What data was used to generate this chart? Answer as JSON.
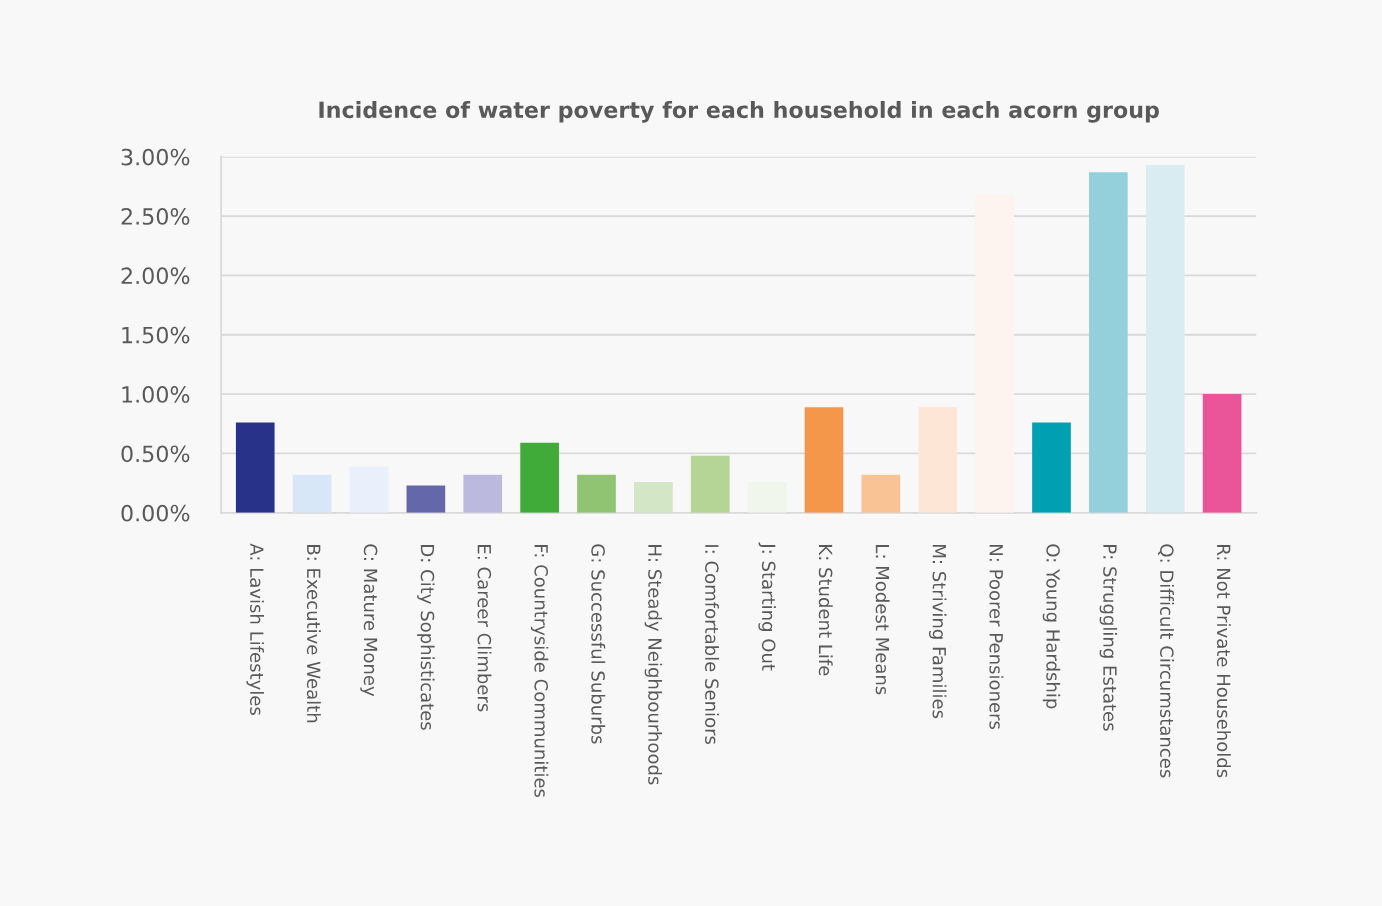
{
  "chart_data": {
    "type": "bar",
    "title": "Incidence of water poverty for each household in each acorn group",
    "categories": [
      "A: Lavish Lifestyles",
      "B: Executive Wealth",
      "C: Mature Money",
      "D: City Sophisticates",
      "E: Career Climbers",
      "F: Countryside Communities",
      "G: Successful Suburbs",
      "H: Steady Neighbourhoods",
      "I: Comfortable Seniors",
      "J: Starting Out",
      "K: Student Life",
      "L: Modest Means",
      "M: Striving Families",
      "N: Poorer Pensioners",
      "O: Young Hardship",
      "P: Struggling Estates",
      "Q: Difficult Circumstances",
      "R: Not Private Households"
    ],
    "values": [
      0.76,
      0.32,
      0.39,
      0.23,
      0.32,
      0.59,
      0.32,
      0.26,
      0.48,
      0.26,
      0.89,
      0.32,
      0.89,
      2.68,
      0.76,
      2.87,
      2.93,
      1.0
    ],
    "colors": [
      "#283289",
      "#d8e7f7",
      "#eaf0fb",
      "#6567ab",
      "#bbbade",
      "#41ab39",
      "#90c472",
      "#d3e7c7",
      "#b4d595",
      "#f0f6ec",
      "#f5974b",
      "#f9c396",
      "#fde6d6",
      "#fdf3ef",
      "#00a0b3",
      "#94d0dc",
      "#d8ecf1",
      "#e95598"
    ],
    "ylim": [
      0,
      3.0
    ],
    "yticks": [
      {
        "value": 0,
        "label": "0.00%"
      },
      {
        "value": 0.5,
        "label": "0.50%"
      },
      {
        "value": 1.0,
        "label": "1.00%"
      },
      {
        "value": 1.5,
        "label": "1.50%"
      },
      {
        "value": 2.0,
        "label": "2.00%"
      },
      {
        "value": 2.5,
        "label": "2.50%"
      },
      {
        "value": 3.0,
        "label": "3.00%"
      }
    ],
    "grid": "y",
    "legend": false
  }
}
